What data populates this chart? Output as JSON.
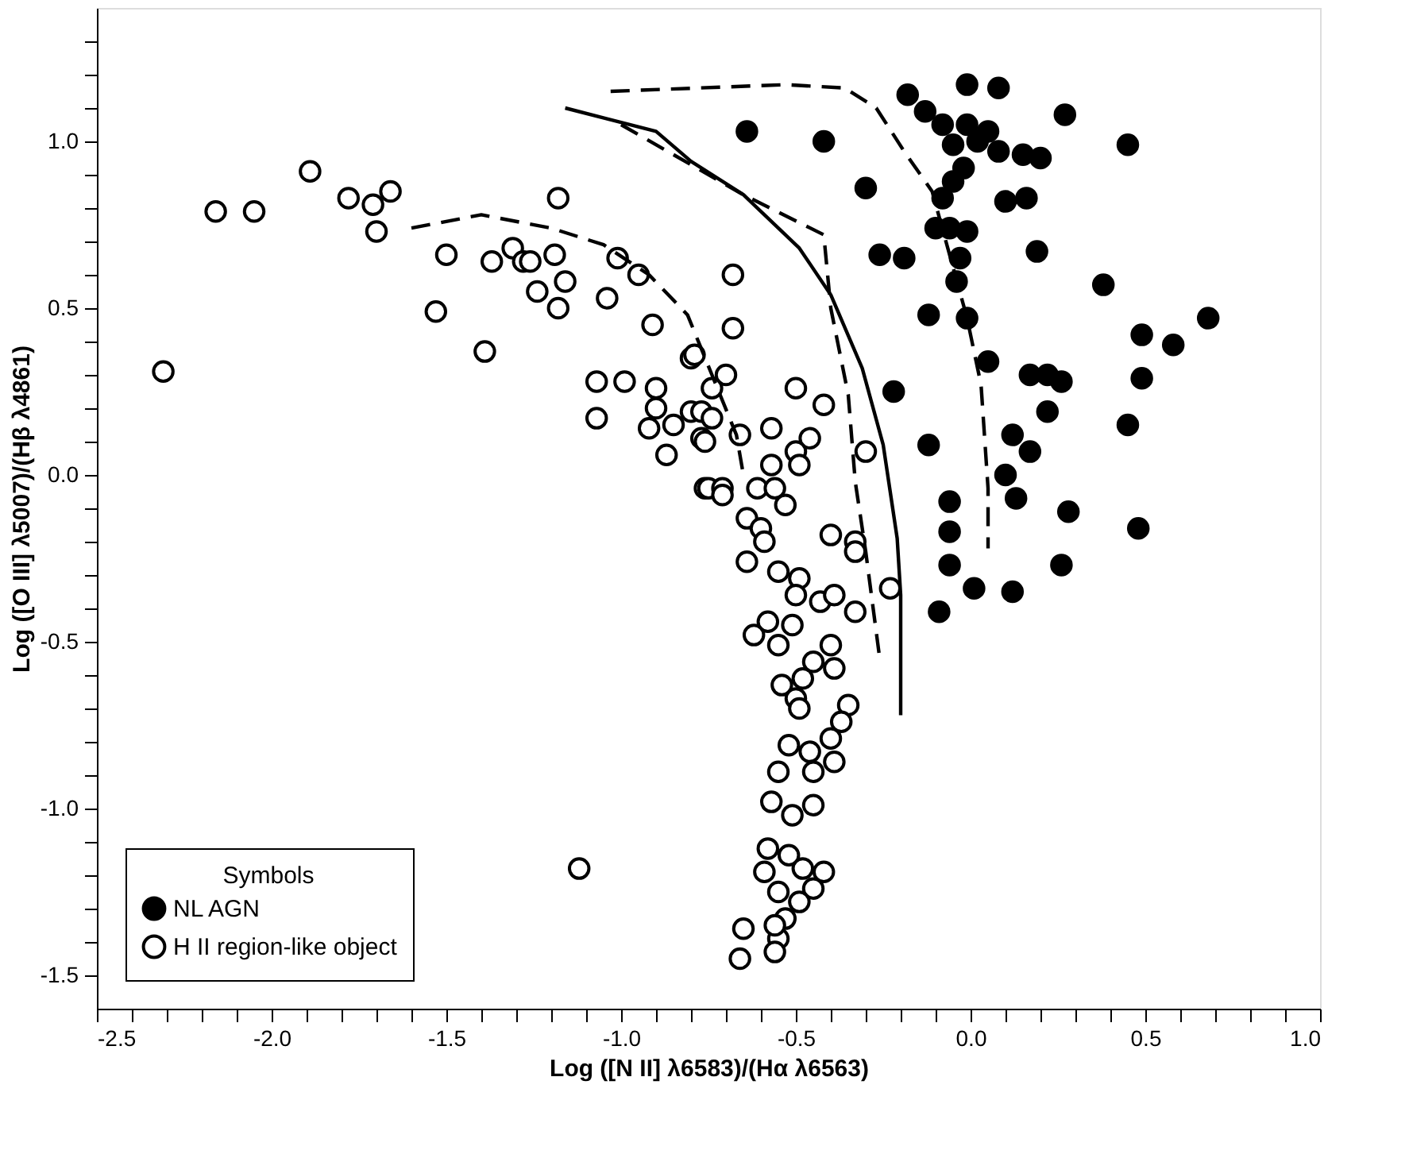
{
  "chart_data": {
    "type": "scatter",
    "xlabel": "Log ([N II] λ6583)/(Hα λ6563)",
    "ylabel": "Log ([O III] λ5007)/(Hβ λ4861)",
    "legend_title": "Symbols",
    "legend": "bottom left",
    "grid": false,
    "xlim": [
      -2.5,
      1.0
    ],
    "ylim": [
      -1.6,
      1.4
    ],
    "xticks": [
      -2.5,
      {
        "value": -2.4,
        "label": null
      },
      {
        "value": -2.3,
        "label": null
      },
      {
        "value": -2.2,
        "label": null
      },
      {
        "value": -2.1,
        "label": null
      },
      {
        "value": -2.0,
        "label": "-2.0"
      },
      {
        "value": -1.9,
        "label": null
      },
      {
        "value": -1.8,
        "label": null
      },
      {
        "value": -1.7,
        "label": null
      },
      {
        "value": -1.6,
        "label": null
      },
      -1.5,
      {
        "value": -1.4,
        "label": null
      },
      {
        "value": -1.3,
        "label": null
      },
      {
        "value": -1.2,
        "label": null
      },
      {
        "value": -1.1,
        "label": null
      },
      {
        "value": -1.0,
        "label": "-1.0"
      },
      {
        "value": -0.9,
        "label": null
      },
      {
        "value": -0.8,
        "label": null
      },
      {
        "value": -0.7,
        "label": null
      },
      {
        "value": -0.6,
        "label": null
      },
      -0.5,
      {
        "value": -0.4,
        "label": null
      },
      {
        "value": -0.3,
        "label": null
      },
      {
        "value": -0.2,
        "label": null
      },
      {
        "value": -0.1,
        "label": null
      },
      {
        "value": 0,
        "label": "0.0"
      },
      {
        "value": 0.1,
        "label": null
      },
      {
        "value": 0.2,
        "label": null
      },
      {
        "value": 0.3,
        "label": null
      },
      {
        "value": 0.4,
        "label": null
      },
      0.5,
      {
        "value": 0.6,
        "label": null
      },
      {
        "value": 0.7,
        "label": null
      },
      {
        "value": 0.8,
        "label": null
      },
      {
        "value": 0.9,
        "label": null
      },
      {
        "value": 1.0,
        "label": "1.0"
      }
    ],
    "yticks": [
      -1.5,
      {
        "value": -1.4,
        "label": null
      },
      {
        "value": -1.3,
        "label": null
      },
      {
        "value": -1.2,
        "label": null
      },
      {
        "value": -1.1,
        "label": null
      },
      {
        "value": -1.0,
        "label": "-1.0"
      },
      {
        "value": -0.9,
        "label": null
      },
      {
        "value": -0.8,
        "label": null
      },
      {
        "value": -0.7,
        "label": null
      },
      {
        "value": -0.6,
        "label": null
      },
      -0.5,
      {
        "value": -0.4,
        "label": null
      },
      {
        "value": -0.3,
        "label": null
      },
      {
        "value": -0.2,
        "label": null
      },
      {
        "value": -0.1,
        "label": null
      },
      {
        "value": 0,
        "label": "0.0"
      },
      {
        "value": 0.1,
        "label": null
      },
      {
        "value": 0.2,
        "label": null
      },
      {
        "value": 0.3,
        "label": null
      },
      {
        "value": 0.4,
        "label": null
      },
      0.5,
      {
        "value": 0.6,
        "label": null
      },
      {
        "value": 0.7,
        "label": null
      },
      {
        "value": 0.8,
        "label": null
      },
      {
        "value": 0.9,
        "label": null
      },
      {
        "value": 1.0,
        "label": "1.0"
      },
      {
        "value": 1.1,
        "label": null
      },
      {
        "value": 1.2,
        "label": null
      },
      {
        "value": 1.3,
        "label": null
      }
    ],
    "series": [
      {
        "type": "line",
        "line_style": "dashed",
        "color": "#000000",
        "x": [
          -1.6,
          -1.4,
          -1.2,
          -1.05,
          -0.92,
          -0.81,
          -0.74,
          -0.67,
          -0.65
        ],
        "values": [
          0.74,
          0.78,
          0.74,
          0.69,
          0.6,
          0.48,
          0.3,
          0.12,
          0.0
        ]
      },
      {
        "type": "line",
        "line_style": "dashed",
        "color": "#000000",
        "x": [
          -1.0,
          -0.65,
          -0.42,
          -0.4,
          -0.35,
          -0.33,
          -0.3,
          -0.26
        ],
        "values": [
          1.05,
          0.84,
          0.72,
          0.5,
          0.24,
          -0.02,
          -0.23,
          -0.55
        ]
      },
      {
        "type": "line",
        "line_style": "solid",
        "color": "#000000",
        "x": [
          -1.16,
          -0.9,
          -0.8,
          -0.65,
          -0.49,
          -0.4,
          -0.31,
          -0.25,
          -0.21,
          -0.2,
          -0.2
        ],
        "values": [
          1.1,
          1.03,
          0.94,
          0.84,
          0.68,
          0.54,
          0.32,
          0.09,
          -0.19,
          -0.36,
          -0.72
        ]
      },
      {
        "type": "line",
        "line_style": "dashed",
        "color": "#000000",
        "x": [
          -1.03,
          -0.53,
          -0.36,
          -0.27,
          -0.19,
          -0.11,
          -0.01,
          0.03,
          0.05,
          0.05
        ],
        "values": [
          1.15,
          1.17,
          1.16,
          1.1,
          0.97,
          0.85,
          0.47,
          0.27,
          -0.04,
          -0.22
        ]
      },
      {
        "marker": "circle",
        "name": "NL AGN",
        "color": "#000000",
        "x": [
          -0.64,
          -0.42,
          -0.3,
          -0.26,
          -0.19,
          0.27,
          0.45,
          -0.18,
          -0.01,
          0.08,
          -0.13,
          -0.08,
          -0.01,
          0.05,
          -0.05,
          0.02,
          0.08,
          0.15,
          0.2,
          -0.02,
          -0.05,
          -0.08,
          0.1,
          0.16,
          -0.1,
          -0.06,
          -0.01,
          -0.03,
          -0.04,
          0.19,
          0.38,
          -0.12,
          -0.01,
          0.49,
          0.58,
          0.68,
          0.05,
          -0.22,
          0.17,
          0.22,
          0.26,
          0.49,
          0.22,
          0.12,
          0.45,
          -0.12,
          0.17,
          0.1,
          0.13,
          -0.06,
          0.28,
          0.48,
          -0.06,
          -0.06,
          0.26,
          0.01,
          0.12,
          -0.09
        ],
        "values": [
          1.03,
          1.0,
          0.86,
          0.66,
          0.65,
          1.08,
          0.99,
          1.14,
          1.17,
          1.16,
          1.09,
          1.05,
          1.05,
          1.03,
          0.99,
          1.0,
          0.97,
          0.96,
          0.95,
          0.92,
          0.88,
          0.83,
          0.82,
          0.83,
          0.74,
          0.74,
          0.73,
          0.65,
          0.58,
          0.67,
          0.57,
          0.48,
          0.47,
          0.42,
          0.39,
          0.47,
          0.34,
          0.25,
          0.3,
          0.3,
          0.28,
          0.29,
          0.19,
          0.12,
          0.15,
          0.09,
          0.07,
          0.0,
          -0.07,
          -0.08,
          -0.11,
          -0.16,
          -0.17,
          -0.27,
          -0.27,
          -0.34,
          -0.35,
          -0.41
        ]
      },
      {
        "marker": "circle",
        "name": "H II region-like object",
        "color": "#ffffff",
        "x": [
          -2.16,
          -2.05,
          -1.89,
          -1.78,
          -1.66,
          -1.71,
          -1.7,
          -1.18,
          -1.5,
          -1.53,
          -1.37,
          -1.31,
          -1.28,
          -1.26,
          -1.19,
          -1.16,
          -1.24,
          -1.18,
          -1.39,
          -1.04,
          -1.01,
          -0.95,
          -0.91,
          -0.8,
          -2.31,
          -1.07,
          -0.99,
          -1.07,
          -0.9,
          -0.9,
          -0.92,
          -0.85,
          -0.8,
          -0.77,
          -0.87,
          -0.76,
          -0.68,
          -0.68,
          -0.79,
          -0.7,
          -0.74,
          -0.77,
          -0.74,
          -0.76,
          -0.5,
          -0.42,
          -0.66,
          -0.57,
          -0.46,
          -0.5,
          -0.57,
          -0.49,
          -0.75,
          -0.71,
          -0.61,
          -0.56,
          -0.53,
          -0.64,
          -0.6,
          -0.3,
          -0.71,
          -0.59,
          -0.64,
          -0.4,
          -0.33,
          -0.33,
          -0.23,
          -0.55,
          -0.49,
          -0.5,
          -0.43,
          -0.39,
          -0.33,
          -0.58,
          -0.51,
          -0.62,
          -0.55,
          -0.4,
          -0.45,
          -0.39,
          -0.48,
          -0.54,
          -0.5,
          -0.49,
          -0.35,
          -0.37,
          -0.4,
          -0.52,
          -0.46,
          -0.39,
          -0.55,
          -0.45,
          -0.57,
          -0.45,
          -0.51,
          -0.58,
          -0.52,
          -0.59,
          -0.48,
          -0.42,
          -0.55,
          -0.45,
          -0.49,
          -0.53,
          -0.65,
          -0.55,
          -1.12,
          -0.66,
          -0.56,
          -0.56
        ],
        "values": [
          0.79,
          0.79,
          0.91,
          0.83,
          0.85,
          0.81,
          0.73,
          0.83,
          0.66,
          0.49,
          0.64,
          0.68,
          0.64,
          0.64,
          0.66,
          0.58,
          0.55,
          0.5,
          0.37,
          0.53,
          0.65,
          0.6,
          0.45,
          0.35,
          0.31,
          0.28,
          0.28,
          0.17,
          0.26,
          0.2,
          0.14,
          0.15,
          0.19,
          0.11,
          0.06,
          -0.04,
          0.6,
          0.44,
          0.36,
          0.3,
          0.26,
          0.19,
          0.17,
          0.1,
          0.26,
          0.21,
          0.12,
          0.14,
          0.11,
          0.07,
          0.03,
          0.03,
          -0.04,
          -0.04,
          -0.04,
          -0.04,
          -0.09,
          -0.13,
          -0.16,
          0.07,
          -0.06,
          -0.2,
          -0.26,
          -0.18,
          -0.2,
          -0.23,
          -0.34,
          -0.29,
          -0.31,
          -0.36,
          -0.38,
          -0.36,
          -0.41,
          -0.44,
          -0.45,
          -0.48,
          -0.51,
          -0.51,
          -0.56,
          -0.58,
          -0.61,
          -0.63,
          -0.67,
          -0.7,
          -0.69,
          -0.74,
          -0.79,
          -0.81,
          -0.83,
          -0.86,
          -0.89,
          -0.89,
          -0.98,
          -0.99,
          -1.02,
          -1.12,
          -1.14,
          -1.19,
          -1.18,
          -1.19,
          -1.25,
          -1.24,
          -1.28,
          -1.33,
          -1.36,
          -1.39,
          -1.18,
          -1.45,
          -1.43,
          -1.35
        ]
      }
    ]
  }
}
